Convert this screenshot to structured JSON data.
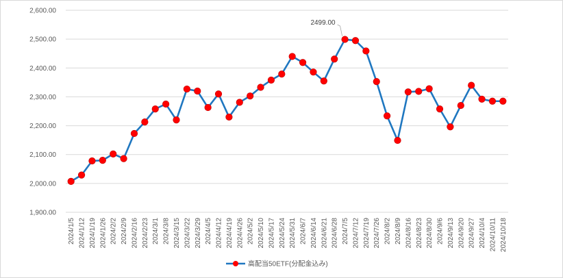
{
  "chart_data": {
    "type": "line",
    "title": "",
    "xlabel": "",
    "ylabel": "",
    "ylim": [
      1900,
      2600
    ],
    "y_ticks": [
      "1,900.00",
      "2,000.00",
      "2,100.00",
      "2,200.00",
      "2,300.00",
      "2,400.00",
      "2,500.00",
      "2,600.00"
    ],
    "grid": "horizontal",
    "legend_position": "bottom",
    "categories": [
      "2024/1/5",
      "2024/1/12",
      "2024/1/19",
      "2024/1/26",
      "2024/2/2",
      "2024/2/9",
      "2024/2/16",
      "2024/2/23",
      "2024/3/1",
      "2024/3/8",
      "2024/3/15",
      "2024/3/22",
      "2024/3/29",
      "2024/4/5",
      "2024/4/12",
      "2024/4/19",
      "2024/4/26",
      "2024/5/2",
      "2024/5/10",
      "2024/5/17",
      "2024/5/24",
      "2024/5/31",
      "2024/6/7",
      "2024/6/14",
      "2024/6/21",
      "2024/6/28",
      "2024/7/5",
      "2024/7/12",
      "2024/7/19",
      "2024/7/26",
      "2024/8/2",
      "2024/8/9",
      "2024/8/16",
      "2024/8/23",
      "2024/8/30",
      "2024/9/6",
      "2024/9/13",
      "2024/9/20",
      "2024/9/27",
      "2024/10/4",
      "2024/10/11",
      "2024/10/18"
    ],
    "series": [
      {
        "name": "高配当50ETF(分配金込み)",
        "color": "#1f77c0",
        "marker_color": "#ff0000",
        "values": [
          2007,
          2029,
          2078,
          2080,
          2102,
          2086,
          2173,
          2213,
          2258,
          2275,
          2220,
          2327,
          2320,
          2263,
          2310,
          2230,
          2281,
          2303,
          2333,
          2358,
          2379,
          2440,
          2419,
          2386,
          2355,
          2431,
          2499,
          2495,
          2459,
          2353,
          2234,
          2149,
          2317,
          2319,
          2328,
          2258,
          2196,
          2270,
          2340,
          2292,
          2285,
          2285
        ]
      }
    ],
    "annotations": [
      {
        "category": "2024/7/5",
        "value": 2499.0,
        "label": "2499.00"
      }
    ]
  }
}
